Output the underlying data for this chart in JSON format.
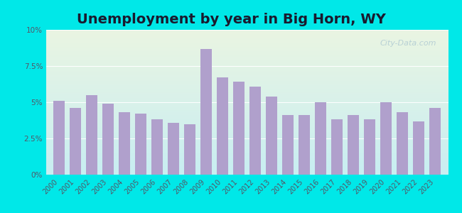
{
  "title": "Unemployment by year in Big Horn, WY",
  "years": [
    2000,
    2001,
    2002,
    2003,
    2004,
    2005,
    2006,
    2007,
    2008,
    2009,
    2010,
    2011,
    2012,
    2013,
    2014,
    2015,
    2016,
    2017,
    2018,
    2019,
    2020,
    2021,
    2022,
    2023
  ],
  "values": [
    5.1,
    4.6,
    5.5,
    4.9,
    4.3,
    4.2,
    3.8,
    3.6,
    3.5,
    8.7,
    6.7,
    6.4,
    6.1,
    5.4,
    4.1,
    4.1,
    5.0,
    3.8,
    4.1,
    3.8,
    5.0,
    4.3,
    3.7,
    4.6
  ],
  "bar_color": "#b0a0cc",
  "background_outer": "#00e8e8",
  "background_plot_top": "#eaf5e2",
  "background_plot_bottom": "#c8eef2",
  "title_fontsize": 14,
  "tick_fontsize": 7.5,
  "ylim": [
    0,
    10
  ],
  "yticks": [
    0,
    2.5,
    5.0,
    7.5,
    10.0
  ],
  "ytick_labels": [
    "0%",
    "2.5%",
    "5%",
    "7.5%",
    "10%"
  ],
  "watermark_text": "City-Data.com"
}
